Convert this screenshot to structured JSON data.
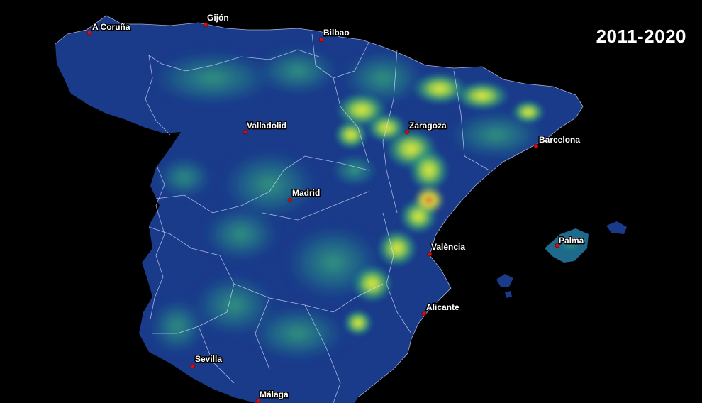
{
  "title": "2011-2020",
  "palette": {
    "background": "#000000",
    "low": "#1a3a8a",
    "mid": "#1f8a8a",
    "high": "#6fe04a",
    "peak": "#f0f03a",
    "max": "#e06a2a",
    "city_marker": "#d01010"
  },
  "cities": [
    {
      "name": "A Coruña"
    },
    {
      "name": "Gijón"
    },
    {
      "name": "Bilbao"
    },
    {
      "name": "Valladolid"
    },
    {
      "name": "Zaragoza"
    },
    {
      "name": "Barcelona"
    },
    {
      "name": "Madrid"
    },
    {
      "name": "Palma"
    },
    {
      "name": "València"
    },
    {
      "name": "Alicante"
    },
    {
      "name": "Sevilla"
    },
    {
      "name": "Málaga"
    }
  ]
}
